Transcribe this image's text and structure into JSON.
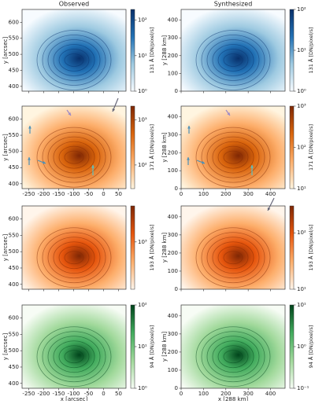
{
  "columns": [
    "Observed",
    "Synthesized"
  ],
  "axes": [
    {
      "xlabel": "x [arcsec]",
      "ylabel": "y [arcsec]",
      "xlim": [
        -272,
        75
      ],
      "ylim": [
        385,
        640
      ],
      "xticks": [
        -250,
        -200,
        -150,
        -100,
        -50,
        0,
        50
      ],
      "yticks": [
        400,
        450,
        500,
        550,
        600
      ]
    },
    {
      "xlabel": "x [288 km]",
      "ylabel": "y [288 km]",
      "xlim": [
        0,
        465
      ],
      "ylim": [
        0,
        460
      ],
      "xticks": [
        0,
        100,
        200,
        300,
        400
      ],
      "yticks": [
        0,
        100,
        200,
        300,
        400
      ]
    }
  ],
  "rows": [
    {
      "colorbar_label": "131 Å [DN/pixel/s]",
      "show_xticks": false,
      "colormap": [
        "#f7fbff",
        "#9ecae1",
        "#2171b5",
        "#08306b"
      ],
      "colorbars": [
        {
          "clim": [
            1,
            200
          ],
          "ticks": [
            {
              "value": 1,
              "label": "10⁰"
            },
            {
              "value": 10,
              "label": "10¹"
            },
            {
              "value": 100,
              "label": "10²"
            }
          ]
        },
        {
          "clim": [
            1,
            100
          ],
          "ticks": [
            {
              "value": 1,
              "label": "10⁰"
            },
            {
              "value": 10,
              "label": "10¹"
            },
            {
              "value": 100,
              "label": "10²"
            }
          ]
        }
      ]
    },
    {
      "colorbar_label": "171 Å [DN/pixel/s]",
      "show_xticks": true,
      "colormap": [
        "#fff5e0",
        "#fdae6b",
        "#d9640c",
        "#7f2704"
      ],
      "colorbars": [
        {
          "clim": [
            30,
            2000
          ],
          "ticks": [
            {
              "value": 100,
              "label": "10²"
            },
            {
              "value": 1000,
              "label": "10³"
            }
          ]
        },
        {
          "clim": [
            10,
            1000
          ],
          "ticks": [
            {
              "value": 10,
              "label": "10¹"
            },
            {
              "value": 100,
              "label": "10²"
            },
            {
              "value": 1000,
              "label": "10³"
            }
          ]
        }
      ]
    },
    {
      "colorbar_label": "193 Å [DN/pixel/s]",
      "show_xticks": false,
      "colormap": [
        "#fff5eb",
        "#fdae6b",
        "#e6550d",
        "#7f2704"
      ],
      "colorbars": [
        {
          "clim": [
            300,
            2500
          ],
          "ticks": [
            {
              "value": 1000,
              "label": "10³"
            }
          ]
        },
        {
          "clim": [
            10,
            300
          ],
          "ticks": [
            {
              "value": 10,
              "label": "10¹"
            },
            {
              "value": 100,
              "label": "10²"
            }
          ]
        }
      ]
    },
    {
      "colorbar_label": "94 Å [DN/pixel/s]",
      "show_xticks": true,
      "colormap": [
        "#f7fcf5",
        "#a1d99b",
        "#41ab5d",
        "#00441b"
      ],
      "colorbars": [
        {
          "clim": [
            1,
            100
          ],
          "ticks": [
            {
              "value": 1,
              "label": "10⁰"
            },
            {
              "value": 10,
              "label": "10¹"
            },
            {
              "value": 100,
              "label": "10²"
            }
          ]
        },
        {
          "clim": [
            0.1,
            10
          ],
          "ticks": [
            {
              "value": 0.1,
              "label": "10⁻¹"
            },
            {
              "value": 1,
              "label": "10⁰"
            },
            {
              "value": 10,
              "label": "10¹"
            }
          ]
        }
      ]
    }
  ]
}
